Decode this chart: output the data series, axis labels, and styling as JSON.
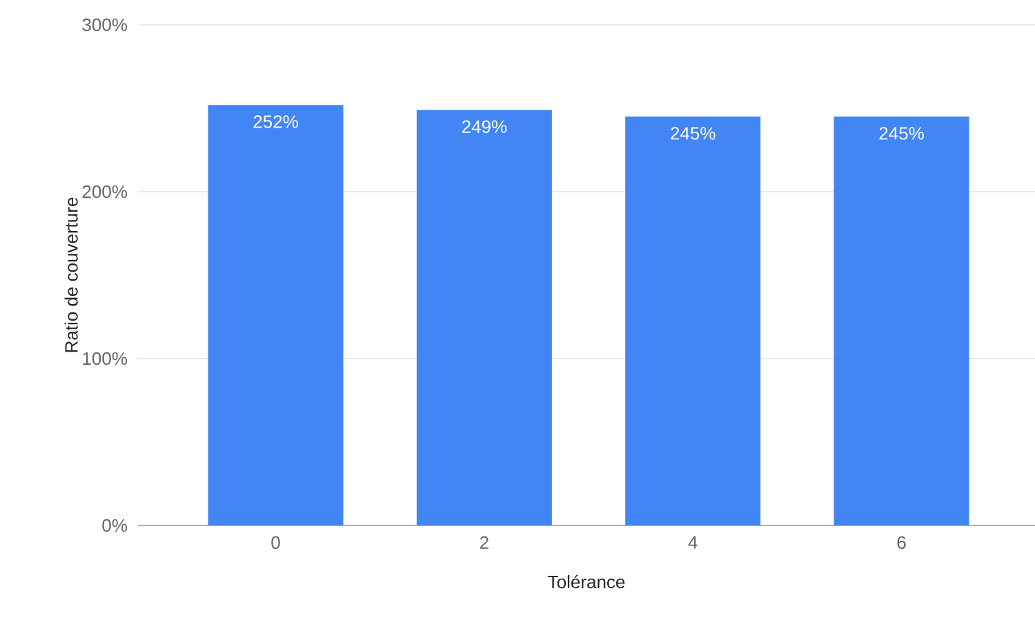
{
  "chart_data": {
    "type": "bar",
    "xlabel": "Tolérance",
    "ylabel": "Ratio de couverture",
    "categories": [
      "0",
      "2",
      "4",
      "6"
    ],
    "values": [
      252,
      249,
      245,
      245
    ],
    "value_labels": [
      "252%",
      "249%",
      "245%",
      "245%"
    ],
    "color": "#4285f4",
    "ylim": [
      0,
      300
    ],
    "yticks": [
      {
        "value": 0,
        "label": "0%"
      },
      {
        "value": 100,
        "label": "100%"
      },
      {
        "value": 200,
        "label": "200%"
      },
      {
        "value": 300,
        "label": "300%"
      }
    ],
    "grid": "y"
  }
}
